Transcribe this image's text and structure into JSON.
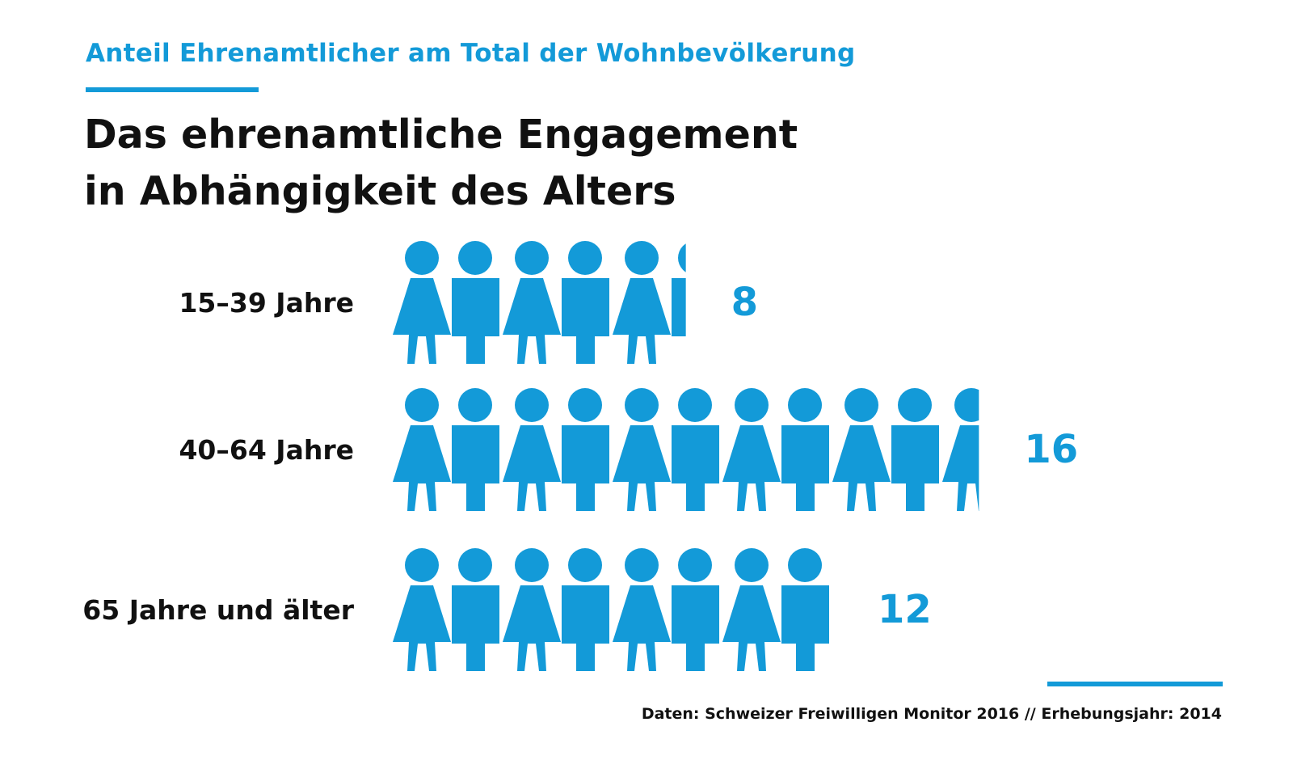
{
  "header": {
    "subtitle": "Anteil Ehrenamtlicher am Total der Wohnbevölkerung",
    "title_line1": "Das ehrenamtliche Engagement",
    "title_line2": "in Abhängigkeit des Alters"
  },
  "footer": {
    "source": "Daten: Schweizer Freiwilligen Monitor 2016 // Erhebungsjahr: 2014"
  },
  "colors": {
    "accent": "#139ad8",
    "text": "#111111",
    "background": "#ffffff"
  },
  "chart_data": {
    "type": "bar",
    "variant": "pictogram",
    "icon": "person-icon",
    "icons_alternate": [
      "female-person-icon",
      "male-person-icon"
    ],
    "unit_per_icon": 1.5,
    "categories": [
      "15–39 Jahre",
      "40–64 Jahre",
      "65 Jahre und älter"
    ],
    "values": [
      8,
      16,
      12
    ],
    "value_labels": [
      "8",
      "16",
      "12"
    ],
    "title": "",
    "xlabel": "",
    "ylabel": "",
    "grid": false,
    "legend": "none"
  }
}
